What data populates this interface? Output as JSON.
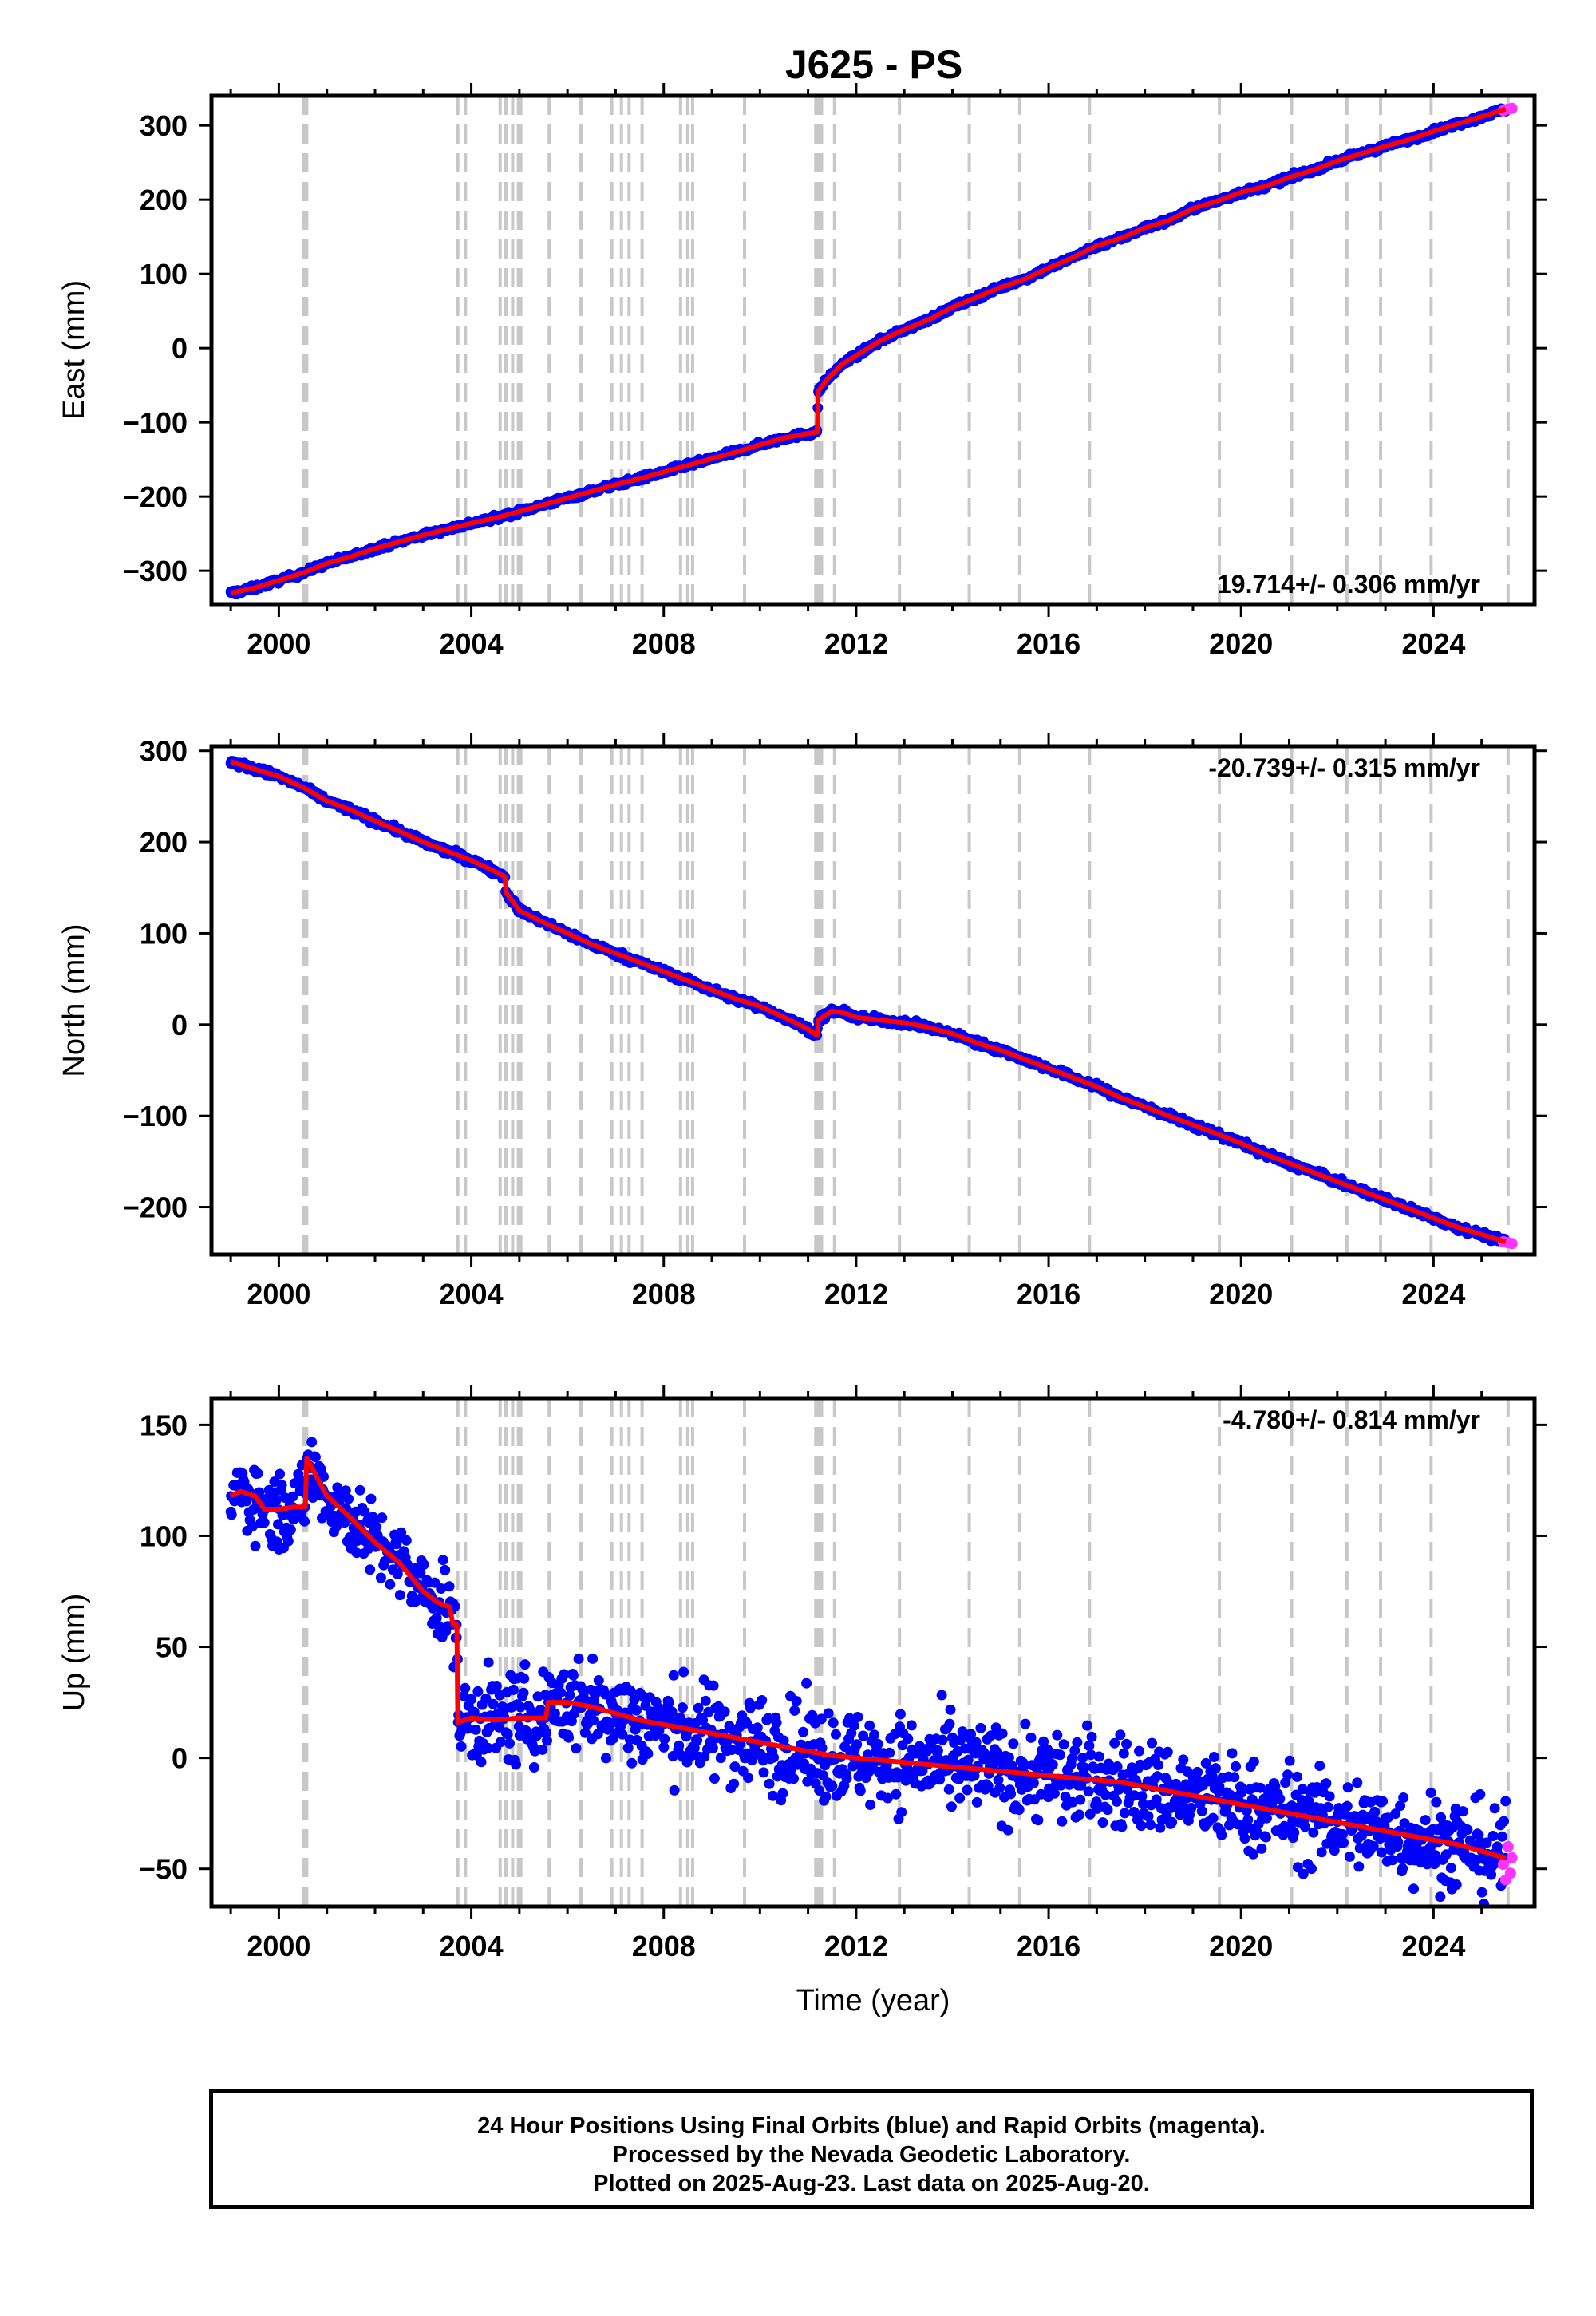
{
  "title": "J625 - PS",
  "colors": {
    "final_orbit": "#0000ff",
    "rapid_orbit": "#ff33ff",
    "model": "#ff0000",
    "event_line": "#c8c8c8",
    "axes": "#000000"
  },
  "chart_data": [
    {
      "type": "scatter",
      "ylabel": "East (mm)",
      "xlabel": "",
      "xlim": [
        1998.6,
        2026.1
      ],
      "ylim": [
        -345,
        340
      ],
      "yticks": [
        -300,
        -200,
        -100,
        0,
        100,
        200,
        300
      ],
      "xticks": [
        2000,
        2004,
        2008,
        2012,
        2016,
        2020,
        2024
      ],
      "annotation": "19.714+/- 0.306 mm/yr",
      "annotation_position": "bottom-right",
      "scatter_spread_mm": 3,
      "series": [
        {
          "style": "final_orbit",
          "x": [
            1999.0,
            1999.5,
            2000.0,
            2000.5,
            2001.0,
            2001.5,
            2002.0,
            2002.5,
            2003.0,
            2003.5,
            2004.0,
            2004.5,
            2005.0,
            2005.5,
            2006.0,
            2006.5,
            2007.0,
            2007.5,
            2008.0,
            2008.5,
            2009.0,
            2009.5,
            2010.0,
            2010.5,
            2011.0,
            2011.19,
            2011.21,
            2011.4,
            2011.7,
            2012.0,
            2012.5,
            2013.0,
            2013.5,
            2014.0,
            2014.5,
            2015.0,
            2015.5,
            2016.0,
            2016.5,
            2017.0,
            2017.5,
            2018.0,
            2018.5,
            2019.0,
            2019.5,
            2020.0,
            2020.5,
            2021.0,
            2021.5,
            2022.0,
            2022.5,
            2023.0,
            2023.5,
            2024.0,
            2024.5,
            2025.0,
            2025.5
          ],
          "y": [
            -330,
            -323,
            -313,
            -303,
            -290,
            -281,
            -270,
            -261,
            -252,
            -244,
            -236,
            -229,
            -220,
            -211,
            -202,
            -193,
            -184,
            -176,
            -167,
            -158,
            -149,
            -140,
            -130,
            -121,
            -115,
            -113,
            -58,
            -42,
            -22,
            -10,
            10,
            25,
            38,
            55,
            68,
            82,
            93,
            108,
            122,
            138,
            148,
            162,
            172,
            188,
            198,
            210,
            218,
            230,
            240,
            252,
            262,
            272,
            281,
            292,
            302,
            312,
            322
          ]
        },
        {
          "style": "model",
          "x": [
            1999.0,
            1999.5,
            2000.0,
            2000.5,
            2001.0,
            2001.5,
            2002.0,
            2002.5,
            2003.0,
            2003.5,
            2004.0,
            2004.5,
            2005.0,
            2005.5,
            2006.0,
            2006.5,
            2007.0,
            2007.5,
            2008.0,
            2008.5,
            2009.0,
            2009.5,
            2010.0,
            2010.5,
            2011.0,
            2011.19,
            2011.21,
            2011.4,
            2011.7,
            2012.0,
            2012.5,
            2013.0,
            2013.5,
            2014.0,
            2014.5,
            2015.0,
            2015.5,
            2016.0,
            2016.5,
            2017.0,
            2017.5,
            2018.0,
            2018.5,
            2019.0,
            2019.5,
            2020.0,
            2020.5,
            2021.0,
            2021.5,
            2022.0,
            2022.5,
            2023.0,
            2023.5,
            2024.0,
            2024.5,
            2025.0,
            2025.5
          ],
          "y": [
            -330,
            -323,
            -313,
            -303,
            -290,
            -281,
            -270,
            -261,
            -252,
            -244,
            -236,
            -229,
            -220,
            -211,
            -202,
            -193,
            -184,
            -176,
            -167,
            -158,
            -149,
            -140,
            -130,
            -121,
            -115,
            -113,
            -58,
            -42,
            -22,
            -10,
            10,
            25,
            38,
            55,
            68,
            82,
            93,
            108,
            122,
            138,
            148,
            162,
            172,
            188,
            198,
            210,
            218,
            230,
            240,
            252,
            262,
            272,
            281,
            292,
            302,
            312,
            322
          ]
        },
        {
          "style": "rapid_orbit",
          "x": [
            2025.45,
            2025.55,
            2025.63
          ],
          "y": [
            320,
            322,
            323
          ]
        }
      ]
    },
    {
      "type": "scatter",
      "ylabel": "North (mm)",
      "xlabel": "",
      "xlim": [
        1998.6,
        2026.1
      ],
      "ylim": [
        -252,
        305
      ],
      "yticks": [
        -200,
        -100,
        0,
        100,
        200,
        300
      ],
      "xticks": [
        2000,
        2004,
        2008,
        2012,
        2016,
        2020,
        2024
      ],
      "annotation": "-20.739+/- 0.315 mm/yr",
      "annotation_position": "top-right",
      "scatter_spread_mm": 3,
      "series": [
        {
          "style": "final_orbit",
          "x": [
            1999.0,
            1999.5,
            2000.0,
            2000.5,
            2001.0,
            2001.5,
            2002.0,
            2002.5,
            2003.0,
            2003.5,
            2004.0,
            2004.4,
            2004.7,
            2004.72,
            2005.0,
            2005.5,
            2006.0,
            2006.5,
            2007.0,
            2007.5,
            2008.0,
            2008.5,
            2009.0,
            2009.5,
            2010.0,
            2010.5,
            2011.0,
            2011.19,
            2011.21,
            2011.5,
            2011.8,
            2012.0,
            2012.5,
            2013.0,
            2013.5,
            2014.0,
            2014.5,
            2015.0,
            2015.5,
            2016.0,
            2016.5,
            2017.0,
            2017.5,
            2018.0,
            2018.5,
            2019.0,
            2019.5,
            2020.0,
            2020.5,
            2021.0,
            2021.5,
            2022.0,
            2022.5,
            2023.0,
            2023.5,
            2024.0,
            2024.5,
            2025.0,
            2025.5
          ],
          "y": [
            288,
            280,
            272,
            260,
            245,
            235,
            223,
            212,
            200,
            190,
            180,
            170,
            162,
            145,
            125,
            112,
            100,
            88,
            78,
            68,
            58,
            48,
            38,
            28,
            20,
            8,
            -5,
            -12,
            5,
            15,
            12,
            8,
            5,
            2,
            -3,
            -10,
            -20,
            -28,
            -38,
            -48,
            -58,
            -68,
            -80,
            -90,
            -100,
            -110,
            -120,
            -130,
            -142,
            -152,
            -162,
            -172,
            -182,
            -192,
            -202,
            -212,
            -222,
            -230,
            -238
          ]
        },
        {
          "style": "model",
          "x": [
            1999.0,
            1999.5,
            2000.0,
            2000.5,
            2001.0,
            2001.5,
            2002.0,
            2002.5,
            2003.0,
            2003.5,
            2004.0,
            2004.4,
            2004.7,
            2004.72,
            2005.0,
            2005.5,
            2006.0,
            2006.5,
            2007.0,
            2007.5,
            2008.0,
            2008.5,
            2009.0,
            2009.5,
            2010.0,
            2010.5,
            2011.0,
            2011.19,
            2011.21,
            2011.5,
            2011.8,
            2012.0,
            2012.5,
            2013.0,
            2013.5,
            2014.0,
            2014.5,
            2015.0,
            2015.5,
            2016.0,
            2016.5,
            2017.0,
            2017.5,
            2018.0,
            2018.5,
            2019.0,
            2019.5,
            2020.0,
            2020.5,
            2021.0,
            2021.5,
            2022.0,
            2022.5,
            2023.0,
            2023.5,
            2024.0,
            2024.5,
            2025.0,
            2025.5
          ],
          "y": [
            288,
            280,
            272,
            260,
            245,
            235,
            223,
            212,
            200,
            190,
            180,
            170,
            162,
            145,
            125,
            112,
            100,
            88,
            78,
            68,
            58,
            48,
            38,
            28,
            20,
            8,
            -5,
            -12,
            5,
            15,
            12,
            8,
            5,
            2,
            -3,
            -10,
            -20,
            -28,
            -38,
            -48,
            -58,
            -68,
            -80,
            -90,
            -100,
            -110,
            -120,
            -130,
            -142,
            -152,
            -162,
            -172,
            -182,
            -192,
            -202,
            -212,
            -222,
            -230,
            -238
          ]
        },
        {
          "style": "rapid_orbit",
          "x": [
            2025.45,
            2025.55,
            2025.63
          ],
          "y": [
            -238,
            -239,
            -240
          ]
        }
      ]
    },
    {
      "type": "scatter",
      "ylabel": "Up (mm)",
      "xlabel": "Time (year)",
      "xlim": [
        1998.6,
        2026.1
      ],
      "ylim": [
        -67,
        162
      ],
      "yticks": [
        -50,
        0,
        50,
        100,
        150
      ],
      "xticks": [
        2000,
        2004,
        2008,
        2012,
        2016,
        2020,
        2024
      ],
      "annotation": "-4.780+/- 0.814 mm/yr",
      "annotation_position": "top-right",
      "scatter_spread_mm": 18,
      "series": [
        {
          "style": "final_orbit",
          "x": [
            1999.0,
            1999.2,
            1999.5,
            1999.7,
            2000.0,
            2000.3,
            2000.55,
            2000.58,
            2000.8,
            2001.0,
            2001.5,
            2002.0,
            2002.5,
            2003.0,
            2003.3,
            2003.55,
            2003.62,
            2003.7,
            2003.72,
            2004.0,
            2004.5,
            2005.0,
            2005.55,
            2005.6,
            2006.0,
            2006.5,
            2007.0,
            2007.5,
            2008.0,
            2008.5,
            2009.0,
            2009.5,
            2010.0,
            2010.5,
            2011.0,
            2011.5,
            2012.0,
            2012.5,
            2013.0,
            2013.5,
            2014.0,
            2014.5,
            2015.0,
            2015.5,
            2016.0,
            2016.5,
            2017.0,
            2017.5,
            2018.0,
            2018.5,
            2019.0,
            2019.5,
            2020.0,
            2020.5,
            2021.0,
            2021.5,
            2022.0,
            2022.5,
            2023.0,
            2023.5,
            2024.0,
            2024.5,
            2025.0,
            2025.3,
            2025.5
          ],
          "y": [
            118,
            120,
            118,
            112,
            112,
            113,
            113,
            135,
            126,
            118,
            108,
            97,
            88,
            75,
            70,
            68,
            60,
            60,
            16,
            18,
            17,
            18,
            18,
            25,
            25,
            23,
            20,
            17,
            15,
            13,
            11,
            9,
            7,
            5,
            3,
            1,
            0,
            -1,
            -2,
            -3,
            -4,
            -5,
            -6,
            -7,
            -8,
            -9,
            -10,
            -11,
            -13,
            -15,
            -17,
            -19,
            -21,
            -23,
            -25,
            -27,
            -29,
            -31,
            -33,
            -35,
            -37,
            -39,
            -42,
            -44,
            -45
          ]
        },
        {
          "style": "model",
          "x": [
            1999.0,
            1999.2,
            1999.5,
            1999.7,
            2000.0,
            2000.3,
            2000.55,
            2000.58,
            2000.8,
            2001.0,
            2001.5,
            2002.0,
            2002.5,
            2003.0,
            2003.3,
            2003.55,
            2003.62,
            2003.7,
            2003.72,
            2004.0,
            2004.5,
            2005.0,
            2005.55,
            2005.6,
            2006.0,
            2006.5,
            2007.0,
            2007.5,
            2008.0,
            2008.5,
            2009.0,
            2009.5,
            2010.0,
            2010.5,
            2011.0,
            2011.5,
            2012.0,
            2012.5,
            2013.0,
            2013.5,
            2014.0,
            2014.5,
            2015.0,
            2015.5,
            2016.0,
            2016.5,
            2017.0,
            2017.5,
            2018.0,
            2018.5,
            2019.0,
            2019.5,
            2020.0,
            2020.5,
            2021.0,
            2021.5,
            2022.0,
            2022.5,
            2023.0,
            2023.5,
            2024.0,
            2024.5,
            2025.0,
            2025.3,
            2025.5
          ],
          "y": [
            118,
            120,
            118,
            112,
            112,
            113,
            113,
            135,
            126,
            118,
            108,
            97,
            88,
            75,
            70,
            68,
            60,
            60,
            16,
            18,
            17,
            18,
            18,
            25,
            25,
            23,
            20,
            17,
            15,
            13,
            11,
            9,
            7,
            5,
            3,
            1,
            0,
            -1,
            -2,
            -3,
            -4,
            -5,
            -6,
            -7,
            -8,
            -9,
            -10,
            -11,
            -13,
            -15,
            -17,
            -19,
            -21,
            -23,
            -25,
            -27,
            -29,
            -31,
            -33,
            -35,
            -37,
            -39,
            -42,
            -44,
            -45
          ]
        },
        {
          "style": "rapid_orbit",
          "x": [
            2025.45,
            2025.5,
            2025.55,
            2025.6,
            2025.63
          ],
          "y": [
            -48,
            -55,
            -40,
            -52,
            -45
          ]
        }
      ]
    }
  ],
  "event_lines": [
    2000.52,
    2000.58,
    2003.72,
    2003.88,
    2004.6,
    2004.72,
    2004.86,
    2004.98,
    2005.03,
    2005.62,
    2006.28,
    2006.92,
    2007.12,
    2007.28,
    2007.55,
    2008.35,
    2008.5,
    2008.6,
    2009.68,
    2011.16,
    2011.22,
    2011.28,
    2011.55,
    2012.9,
    2014.35,
    2015.4,
    2016.85,
    2019.55,
    2021.05,
    2022.2,
    2022.9,
    2023.95,
    2025.55
  ],
  "footer": {
    "line1": "24 Hour Positions Using Final Orbits (blue) and Rapid Orbits (magenta).",
    "line2": "Processed by the Nevada Geodetic Laboratory.",
    "line3": "Plotted on 2025-Aug-23. Last data on 2025-Aug-20."
  }
}
